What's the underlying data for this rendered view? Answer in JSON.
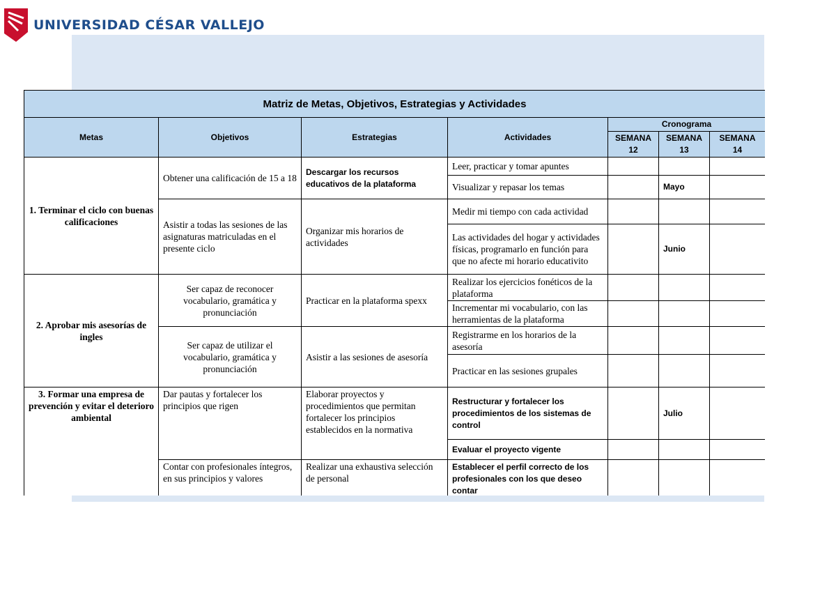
{
  "header": {
    "logo_text": "UNIVERSIDAD CÉSAR VALLEJO",
    "brand_color": "#c8102e",
    "text_color": "#1f4e8c"
  },
  "table": {
    "title": "Matriz de Metas, Objetivos, Estrategias y Actividades",
    "columns": {
      "metas": "Metas",
      "objetivos": "Objetivos",
      "estrategias": "Estrategias",
      "actividades": "Actividades",
      "cronograma": "Cronograma",
      "weeks": [
        "SEMANA 12",
        "SEMANA 13",
        "SEMANA 14"
      ]
    },
    "header_color": "#bdd7ee",
    "metas": [
      {
        "label": "1. Terminar el ciclo con buenas calificaciones",
        "objetivos": [
          {
            "objetivo": "Obtener una calificación de 15 a 18",
            "estrategia": "Descargar los recursos educativos de la plataforma",
            "estrategia_bold": true,
            "actividades": [
              {
                "text": "Leer, practicar y tomar apuntes",
                "weeks": [
                  "",
                  "",
                  ""
                ]
              },
              {
                "text": "Visualizar y repasar los temas",
                "weeks": [
                  "",
                  "Mayo",
                  ""
                ]
              }
            ]
          },
          {
            "objetivo": "Asistir a todas las sesiones de las asignaturas matriculadas en el presente ciclo",
            "estrategia": "Organizar mis horarios de actividades",
            "actividades": [
              {
                "text": "Medir mi tiempo con cada actividad",
                "weeks": [
                  "",
                  "",
                  ""
                ]
              },
              {
                "text": "Las actividades del hogar y actividades físicas, programarlo en función para que no afecte mi horario educativito",
                "weeks": [
                  "",
                  "Junio",
                  ""
                ]
              }
            ]
          }
        ]
      },
      {
        "label": "2. Aprobar mis asesorías de ingles",
        "objetivos": [
          {
            "objetivo": "Ser capaz de reconocer vocabulario, gramática y pronunciación",
            "centered": true,
            "estrategia": "Practicar en la plataforma spexx",
            "actividades": [
              {
                "text": "Realizar los ejercicios fonéticos de la plataforma",
                "weeks": [
                  "",
                  "",
                  ""
                ]
              },
              {
                "text": "Incrementar mi vocabulario, con las herramientas de la plataforma",
                "weeks": [
                  "",
                  "",
                  ""
                ]
              }
            ]
          },
          {
            "objetivo": "Ser capaz de utilizar el vocabulario, gramática y pronunciación",
            "centered": true,
            "estrategia": "Asistir a las sesiones de asesoría",
            "actividades": [
              {
                "text": "Registrarme en los horarios de la asesoría",
                "weeks": [
                  "",
                  "",
                  ""
                ]
              },
              {
                "text": "Practicar en las sesiones grupales",
                "weeks": [
                  "",
                  "",
                  ""
                ]
              }
            ]
          }
        ]
      },
      {
        "label": "3. Formar una empresa de prevención y evitar el deterioro ambiental",
        "objetivos": [
          {
            "objetivo": "Dar pautas y fortalecer los principios que rigen",
            "estrategia": "Elaborar proyectos y procedimientos que permitan fortalecer los principios establecidos en la normativa",
            "actividades": [
              {
                "text": "Restructurar y fortalecer los procedimientos de los sistemas de control",
                "bold": true,
                "weeks": [
                  "",
                  "Julio",
                  ""
                ]
              },
              {
                "text": "Evaluar el proyecto vigente",
                "bold": true,
                "weeks": [
                  "",
                  "",
                  ""
                ]
              }
            ]
          },
          {
            "objetivo": "Contar con profesionales íntegros, en sus principios y valores",
            "estrategia": "Realizar una exhaustiva selección de personal",
            "actividades": [
              {
                "text": "Establecer el perfil correcto de los profesionales con los que deseo contar",
                "bold": true,
                "weeks": [
                  "",
                  "",
                  ""
                ]
              }
            ]
          }
        ]
      }
    ]
  }
}
